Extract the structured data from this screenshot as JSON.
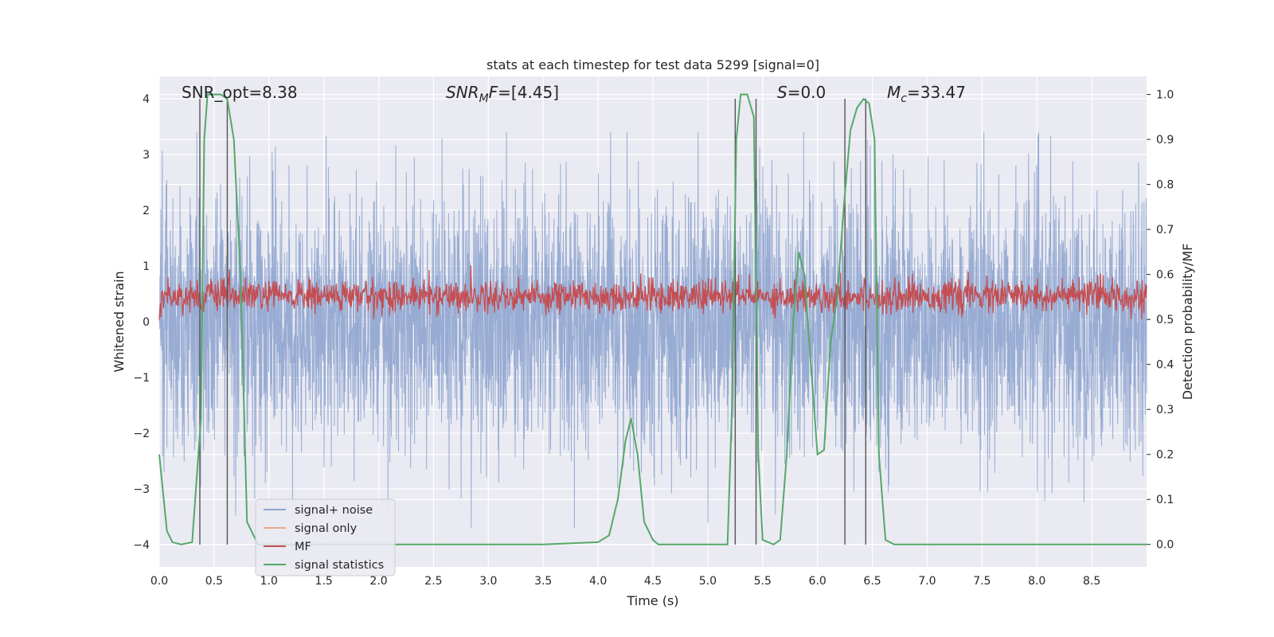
{
  "chart_data": {
    "type": "line",
    "title": "stats at each timestep for test data 5299 [signal=0]",
    "xlabel": "Time (s)",
    "ylabel_left": "Whitened strain",
    "ylabel_right": "Detection probability/MF",
    "xlim": [
      0.0,
      9.0
    ],
    "ylim_left": [
      -4.4,
      4.4
    ],
    "ylim_right": [
      -0.05,
      1.04
    ],
    "xticks": [
      0.0,
      0.5,
      1.0,
      1.5,
      2.0,
      2.5,
      3.0,
      3.5,
      4.0,
      4.5,
      5.0,
      5.5,
      6.0,
      6.5,
      7.0,
      7.5,
      8.0,
      8.5
    ],
    "xtick_labels": [
      "0.0",
      "0.5",
      "1.0",
      "1.5",
      "2.0",
      "2.5",
      "3.0",
      "3.5",
      "4.0",
      "4.5",
      "5.0",
      "5.5",
      "6.0",
      "6.5",
      "7.0",
      "7.5",
      "8.0",
      "8.5"
    ],
    "yticks_left": [
      -4,
      -3,
      -2,
      -1,
      0,
      1,
      2,
      3,
      4
    ],
    "ytick_labels_left": [
      "−4",
      "−3",
      "−2",
      "−1",
      "0",
      "1",
      "2",
      "3",
      "4"
    ],
    "yticks_right": [
      0.0,
      0.1,
      0.2,
      0.3,
      0.4,
      0.5,
      0.6,
      0.7,
      0.8,
      0.9,
      1.0
    ],
    "ytick_labels_right": [
      "0.0",
      "0.1",
      "0.2",
      "0.3",
      "0.4",
      "0.5",
      "0.6",
      "0.7",
      "0.8",
      "0.9",
      "1.0"
    ],
    "annotations": {
      "snr_opt": "SNR_opt=8.38",
      "snr_mf": "=[4.45]",
      "s_value": "=0.0",
      "mc_value": "=33.47"
    },
    "legend": {
      "location": "lower-left",
      "entries": [
        {
          "label": "signal+ noise",
          "color": "#8fa5cf"
        },
        {
          "label": "signal only",
          "color": "#e9a98b"
        },
        {
          "label": "MF",
          "color": "#c44e52"
        },
        {
          "label": "signal statistics",
          "color": "#55a868"
        }
      ]
    },
    "series": [
      {
        "name": "signal+ noise",
        "color": "#8fa5cf",
        "style": "dense noise, amplitude approx ±3.3, whitened strain axis",
        "y_range": [
          -3.7,
          3.4
        ]
      },
      {
        "name": "signal only",
        "color": "#e9a98b",
        "values": []
      },
      {
        "name": "MF",
        "color": "#c44e52",
        "style": "dense noise on right axis",
        "y_range": [
          0.5,
          0.63
        ]
      },
      {
        "name": "signal statistics",
        "color": "#55a868",
        "axis": "right",
        "x": [
          0.0,
          0.07,
          0.12,
          0.2,
          0.3,
          0.38,
          0.41,
          0.44,
          0.5,
          0.56,
          0.62,
          0.68,
          0.74,
          0.8,
          0.9,
          1.0,
          1.5,
          2.0,
          2.5,
          3.0,
          3.5,
          4.0,
          4.1,
          4.18,
          4.25,
          4.3,
          4.36,
          4.42,
          4.5,
          4.55,
          4.6,
          4.7,
          5.0,
          5.18,
          5.22,
          5.26,
          5.3,
          5.36,
          5.42,
          5.46,
          5.5,
          5.6,
          5.66,
          5.72,
          5.78,
          5.83,
          5.88,
          5.94,
          6.0,
          6.06,
          6.12,
          6.18,
          6.24,
          6.3,
          6.36,
          6.42,
          6.47,
          6.52,
          6.56,
          6.62,
          6.7,
          6.8,
          7.5,
          8.0,
          8.5,
          9.0
        ],
        "values": [
          0.2,
          0.03,
          0.005,
          0.0,
          0.005,
          0.28,
          0.9,
          1.0,
          1.0,
          1.0,
          0.99,
          0.9,
          0.6,
          0.05,
          0.0,
          0.0,
          0.0,
          0.0,
          0.0,
          0.0,
          0.0,
          0.005,
          0.02,
          0.1,
          0.23,
          0.28,
          0.2,
          0.05,
          0.01,
          0.0,
          0.0,
          0.0,
          0.0,
          0.0,
          0.3,
          0.9,
          1.0,
          1.0,
          0.95,
          0.2,
          0.01,
          0.0,
          0.01,
          0.2,
          0.5,
          0.65,
          0.6,
          0.4,
          0.2,
          0.21,
          0.45,
          0.55,
          0.75,
          0.92,
          0.97,
          0.99,
          0.98,
          0.9,
          0.2,
          0.01,
          0.0,
          0.0,
          0.0,
          0.0,
          0.0,
          0.0
        ]
      }
    ],
    "vertical_lines": [
      0.37,
      0.62,
      5.25,
      5.44,
      6.25,
      6.44
    ]
  }
}
